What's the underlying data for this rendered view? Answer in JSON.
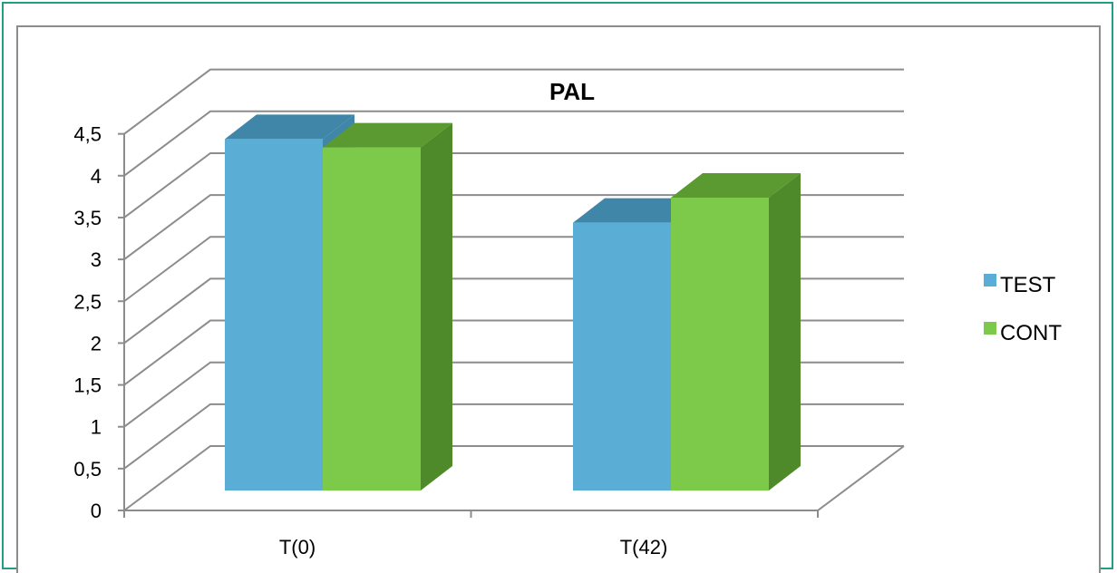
{
  "chart_data": {
    "type": "bar",
    "title": "PAL",
    "xlabel": "",
    "ylabel": "",
    "categories": [
      "T(0)",
      "T(42)"
    ],
    "series": [
      {
        "name": "TEST",
        "values": [
          4.2,
          3.2
        ],
        "color": "#5aaed6",
        "top_color": "#3f86a8"
      },
      {
        "name": "CONT",
        "values": [
          4.1,
          3.5
        ],
        "color": "#7dc94a",
        "top_color": "#5a9a30",
        "side_color": "#4f8a2a"
      }
    ],
    "ylim": [
      0,
      4.5
    ],
    "yticks": [
      "0",
      "0,5",
      "1",
      "1,5",
      "2",
      "2,5",
      "3",
      "3,5",
      "4",
      "4,5"
    ],
    "grid": true,
    "legend_position": "right",
    "style": "3d-clustered-column"
  }
}
